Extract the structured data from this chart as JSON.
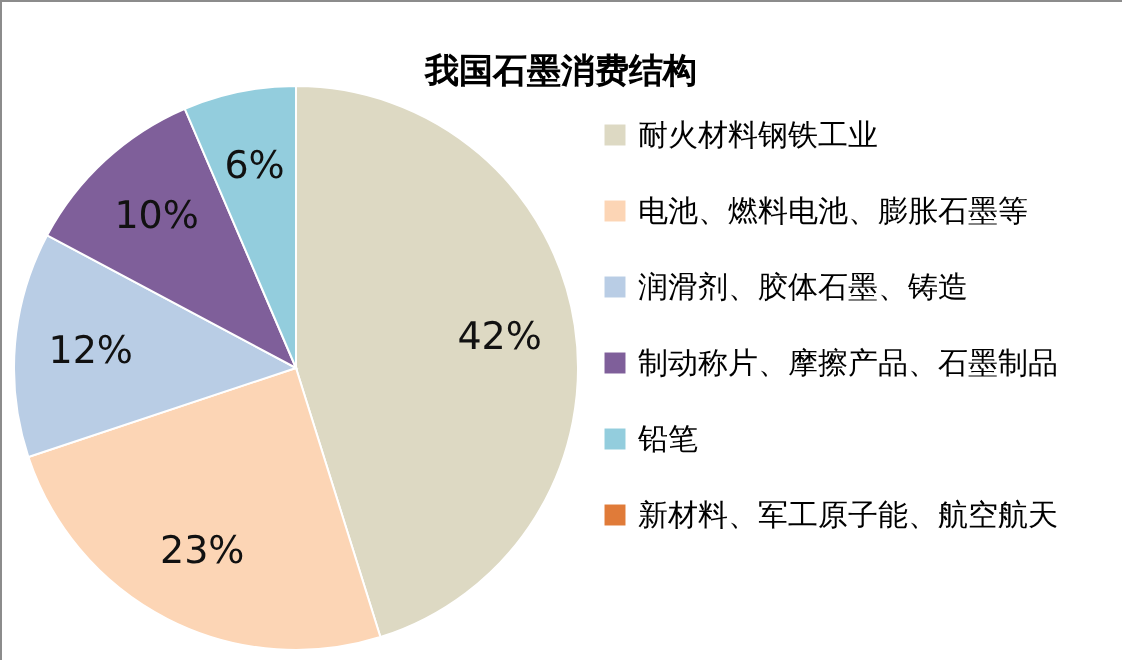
{
  "chart_data": {
    "type": "pie",
    "title": "我国石墨消费结构",
    "categories": [
      "耐火材料钢铁工业",
      "电池、燃料电池、膨胀石墨等",
      "润滑剂、胶体石墨、铸造",
      "制动称片、摩擦产品、石墨制品",
      "铅笔",
      "新材料、军工原子能、航空航天"
    ],
    "values": [
      42,
      23,
      12,
      10,
      6,
      null
    ],
    "value_labels": [
      "42%",
      "23%",
      "12%",
      "10%",
      "6%",
      null
    ],
    "colors": [
      "#ddd9c3",
      "#fcd5b5",
      "#b9cde5",
      "#7f5f9a",
      "#93cddd",
      "#e07b39"
    ],
    "legend": "right"
  }
}
